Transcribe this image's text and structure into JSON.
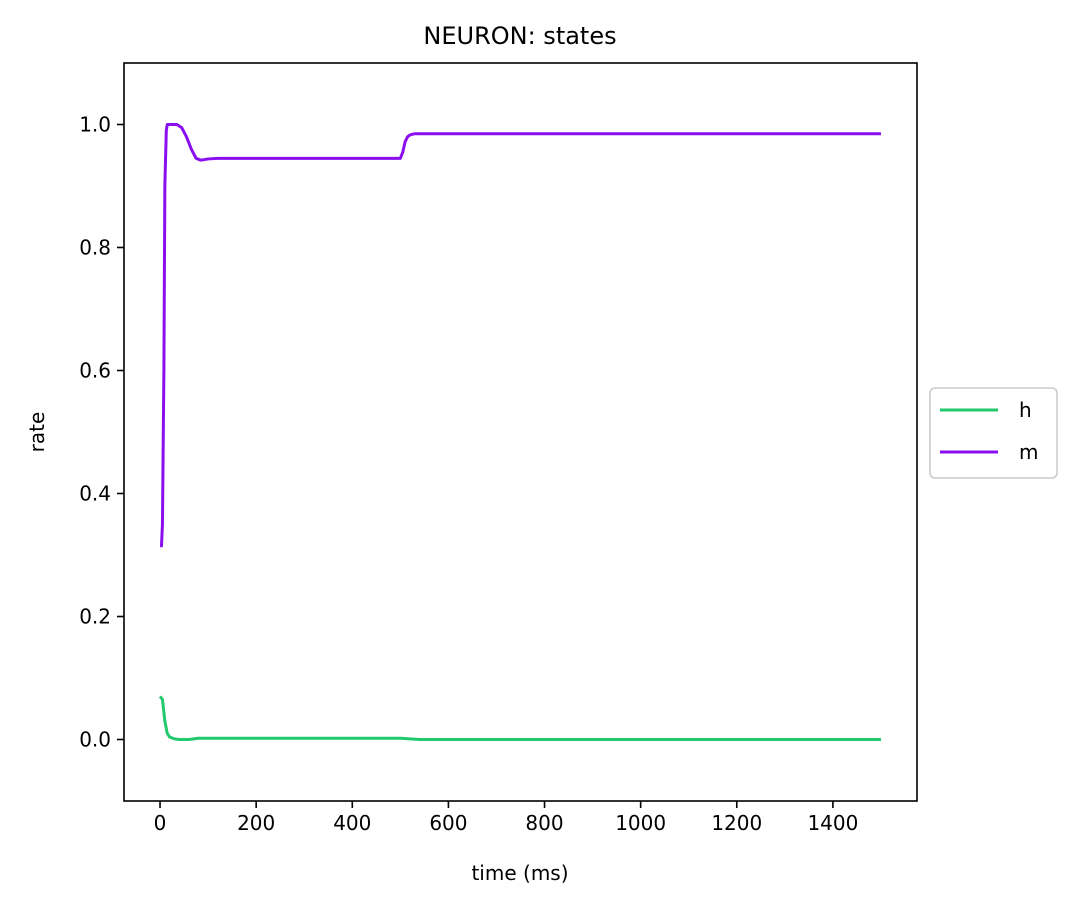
{
  "chart_data": {
    "type": "line",
    "title": "NEURON: states",
    "xlabel": "time (ms)",
    "ylabel": "rate",
    "xlim": [
      -75,
      1575
    ],
    "ylim": [
      -0.1,
      1.1
    ],
    "xticks": [
      0,
      200,
      400,
      600,
      800,
      1000,
      1200,
      1400
    ],
    "yticks": [
      0.0,
      0.2,
      0.4,
      0.6,
      0.8,
      1.0
    ],
    "xtick_labels": [
      "0",
      "200",
      "400",
      "600",
      "800",
      "1000",
      "1200",
      "1400"
    ],
    "ytick_labels": [
      "0.0",
      "0.2",
      "0.4",
      "0.6",
      "0.8",
      "1.0"
    ],
    "grid": false,
    "legend_position": "center-right outside",
    "series": [
      {
        "name": "h",
        "color": "#22c96b",
        "x": [
          0,
          5,
          10,
          15,
          20,
          30,
          40,
          60,
          80,
          100,
          200,
          300,
          400,
          500,
          520,
          540,
          600,
          800,
          1000,
          1200,
          1500
        ],
        "y": [
          0.07,
          0.065,
          0.03,
          0.01,
          0.004,
          0.001,
          0.0,
          0.0,
          0.002,
          0.002,
          0.002,
          0.002,
          0.002,
          0.002,
          0.001,
          0.0,
          0.0,
          0.0,
          0.0,
          0.0,
          0.0
        ]
      },
      {
        "name": "m",
        "color": "#8a0ff0",
        "x": [
          0,
          3,
          5,
          8,
          10,
          13,
          15,
          25,
          35,
          45,
          55,
          65,
          75,
          85,
          100,
          120,
          200,
          300,
          400,
          480,
          500,
          505,
          510,
          515,
          520,
          530,
          540,
          560,
          600,
          800,
          1000,
          1200,
          1500
        ],
        "y": [
          0.315,
          0.315,
          0.35,
          0.6,
          0.9,
          0.99,
          1.0,
          1.0,
          1.0,
          0.995,
          0.98,
          0.96,
          0.945,
          0.942,
          0.944,
          0.945,
          0.945,
          0.945,
          0.945,
          0.945,
          0.945,
          0.955,
          0.972,
          0.98,
          0.983,
          0.985,
          0.985,
          0.985,
          0.985,
          0.985,
          0.985,
          0.985,
          0.985
        ]
      }
    ]
  }
}
